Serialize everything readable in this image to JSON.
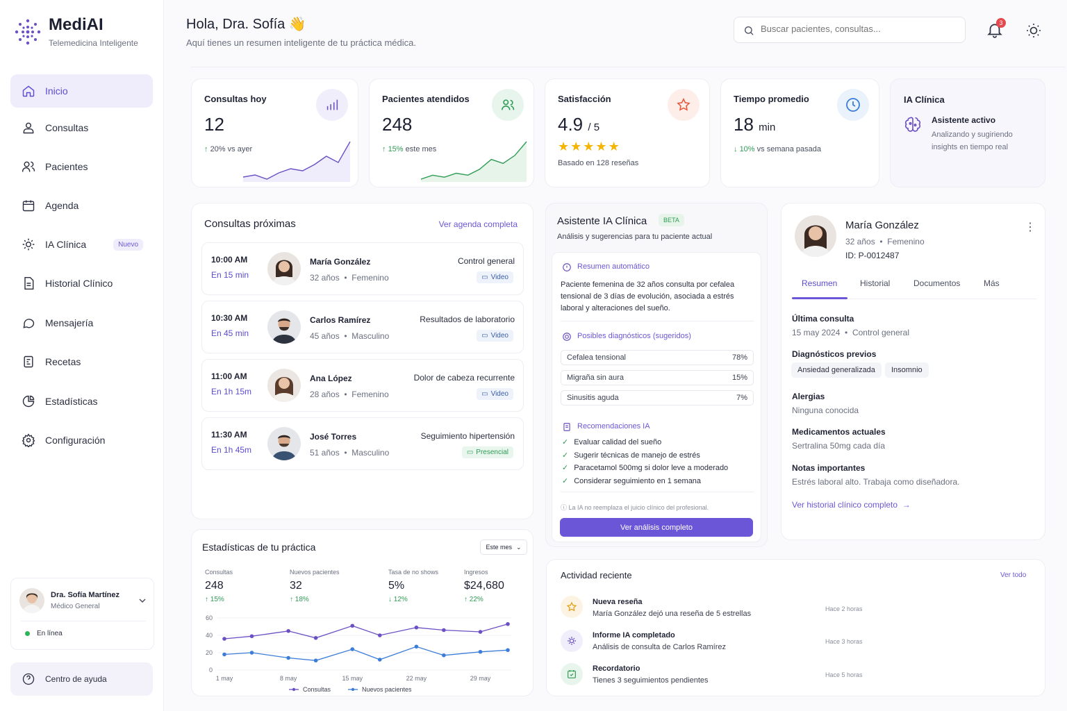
{
  "brand": {
    "name": "MediAI",
    "subtitle": "Telemedicina Inteligente"
  },
  "nav": {
    "items": [
      {
        "label": "Inicio"
      },
      {
        "label": "Consultas"
      },
      {
        "label": "Pacientes"
      },
      {
        "label": "Agenda"
      },
      {
        "label": "IA Clínica",
        "badge": "Nuevo"
      },
      {
        "label": "Historial Clínico"
      },
      {
        "label": "Mensajería"
      },
      {
        "label": "Recetas"
      },
      {
        "label": "Estadísticas"
      },
      {
        "label": "Configuración"
      }
    ]
  },
  "user": {
    "name": "Dra. Sofía Martínez",
    "role": "Médico General",
    "status": "En línea"
  },
  "help": {
    "label": "Centro de ayuda"
  },
  "header": {
    "greeting": "Hola, Dra. Sofía 👋",
    "subtitle": "Aquí tienes un resumen inteligente de tu práctica médica.",
    "search_placeholder": "Buscar pacientes, consultas...",
    "notifications": "3"
  },
  "stats": [
    {
      "title": "Consultas hoy",
      "value": "12",
      "delta": "20%",
      "delta_text": "vs ayer",
      "trend": [
        5,
        6,
        4,
        7,
        9,
        8,
        11,
        15,
        12,
        22
      ]
    },
    {
      "title": "Pacientes atendidos",
      "value": "248",
      "delta": "15%",
      "delta_text": "este mes",
      "trend": [
        4,
        6,
        5,
        7,
        6,
        9,
        14,
        12,
        16,
        23
      ]
    },
    {
      "title": "Satisfacción",
      "value": "4.9",
      "value_suffix": "/ 5",
      "rating": 5,
      "note": "Basado en 128 reseñas"
    },
    {
      "title": "Tiempo promedio",
      "value": "18",
      "value_suffix": "min",
      "delta": "10%",
      "delta_text": "vs semana pasada"
    }
  ],
  "ai_card": {
    "title": "IA Clínica",
    "status": "Asistente activo",
    "desc": "Analizando y sugiriendo insights en tiempo real"
  },
  "upcoming": {
    "title": "Consultas próximas",
    "link": "Ver agenda completa",
    "items": [
      {
        "time": "10:00 AM",
        "in": "En 15 min",
        "name": "María González",
        "age": "32 años",
        "gender": "Femenino",
        "reason": "Control general",
        "mode": "Video"
      },
      {
        "time": "10:30 AM",
        "in": "En 45 min",
        "name": "Carlos Ramírez",
        "age": "45 años",
        "gender": "Masculino",
        "reason": "Resultados de laboratorio",
        "mode": "Video"
      },
      {
        "time": "11:00 AM",
        "in": "En 1h 15m",
        "name": "Ana López",
        "age": "28 años",
        "gender": "Femenino",
        "reason": "Dolor de cabeza recurrente",
        "mode": "Video"
      },
      {
        "time": "11:30 AM",
        "in": "En 1h 45m",
        "name": "José Torres",
        "age": "51 años",
        "gender": "Masculino",
        "reason": "Seguimiento hipertensión",
        "mode": "Presencial"
      }
    ]
  },
  "assistant": {
    "title": "Asistente IA Clínica",
    "badge": "BETA",
    "subtitle": "Análisis y sugerencias para tu paciente actual",
    "summary_title": "Resumen automático",
    "summary": "Paciente femenina de 32 años consulta por cefalea tensional de 3 días de evolución, asociada a estrés laboral y alteraciones del sueño.",
    "diag_title": "Posibles diagnósticos (sugeridos)",
    "diagnoses": [
      {
        "name": "Cefalea tensional",
        "pct": "78%"
      },
      {
        "name": "Migraña sin aura",
        "pct": "15%"
      },
      {
        "name": "Sinusitis aguda",
        "pct": "7%"
      }
    ],
    "rec_title": "Recomendaciones IA",
    "recommendations": [
      "Evaluar calidad del sueño",
      "Sugerir técnicas de manejo de estrés",
      "Paracetamol 500mg si dolor leve a moderado",
      "Considerar seguimiento en 1 semana"
    ],
    "disclaimer": "La IA no reemplaza el juicio clínico del profesional.",
    "cta": "Ver análisis completo"
  },
  "patient": {
    "name": "María González",
    "age": "32 años",
    "gender": "Femenino",
    "id": "ID: P-0012487",
    "tabs": [
      "Resumen",
      "Historial",
      "Documentos",
      "Más"
    ],
    "last_visit_label": "Última consulta",
    "last_visit_date": "15 may 2024",
    "last_visit_type": "Control general",
    "prev_diag_label": "Diagnósticos previos",
    "prev_diag": [
      "Ansiedad generalizada",
      "Insomnio"
    ],
    "allergies_label": "Alergias",
    "allergies": "Ninguna conocida",
    "meds_label": "Medicamentos actuales",
    "meds": "Sertralina 50mg cada día",
    "notes_label": "Notas importantes",
    "notes": "Estrés laboral alto. Trabaja como diseñadora.",
    "link": "Ver historial clínico completo"
  },
  "practice": {
    "title": "Estadísticas de tu práctica",
    "period": "Este mes",
    "kpis": [
      {
        "label": "Consultas",
        "value": "248",
        "delta": "15%",
        "dir": "up"
      },
      {
        "label": "Nuevos pacientes",
        "value": "32",
        "delta": "18%",
        "dir": "up"
      },
      {
        "label": "Tasa de no shows",
        "value": "5%",
        "delta": "12%",
        "dir": "down"
      },
      {
        "label": "Ingresos",
        "value": "$24,680",
        "delta": "22%",
        "dir": "up"
      }
    ]
  },
  "chart_data": {
    "type": "line",
    "x": [
      1,
      4,
      8,
      11,
      15,
      18,
      22,
      25,
      29,
      32
    ],
    "xticks": [
      "1 may",
      "8 may",
      "15 may",
      "22 may",
      "29 may"
    ],
    "xtick_values": [
      1,
      8,
      15,
      22,
      29
    ],
    "yticks": [
      "0",
      "20",
      "40",
      "60"
    ],
    "ylim": [
      0,
      60
    ],
    "series": [
      {
        "name": "Consultas",
        "color": "#6b4fc4",
        "values": [
          36,
          39,
          45,
          37,
          51,
          40,
          49,
          46,
          44,
          53
        ]
      },
      {
        "name": "Nuevos pacientes",
        "color": "#3b7dd8",
        "values": [
          18,
          20,
          14,
          11,
          24,
          12,
          27,
          17,
          21,
          23
        ]
      }
    ]
  },
  "activity": {
    "title": "Actividad reciente",
    "link": "Ver todo",
    "items": [
      {
        "title": "Nueva reseña",
        "desc": "María González dejó una reseña de 5 estrellas",
        "time": "Hace 2 horas"
      },
      {
        "title": "Informe IA completado",
        "desc": "Análisis de consulta de Carlos Ramírez",
        "time": "Hace 3 horas"
      },
      {
        "title": "Recordatorio",
        "desc": "Tienes 3 seguimientos pendientes",
        "time": "Hace 5 horas"
      }
    ]
  }
}
